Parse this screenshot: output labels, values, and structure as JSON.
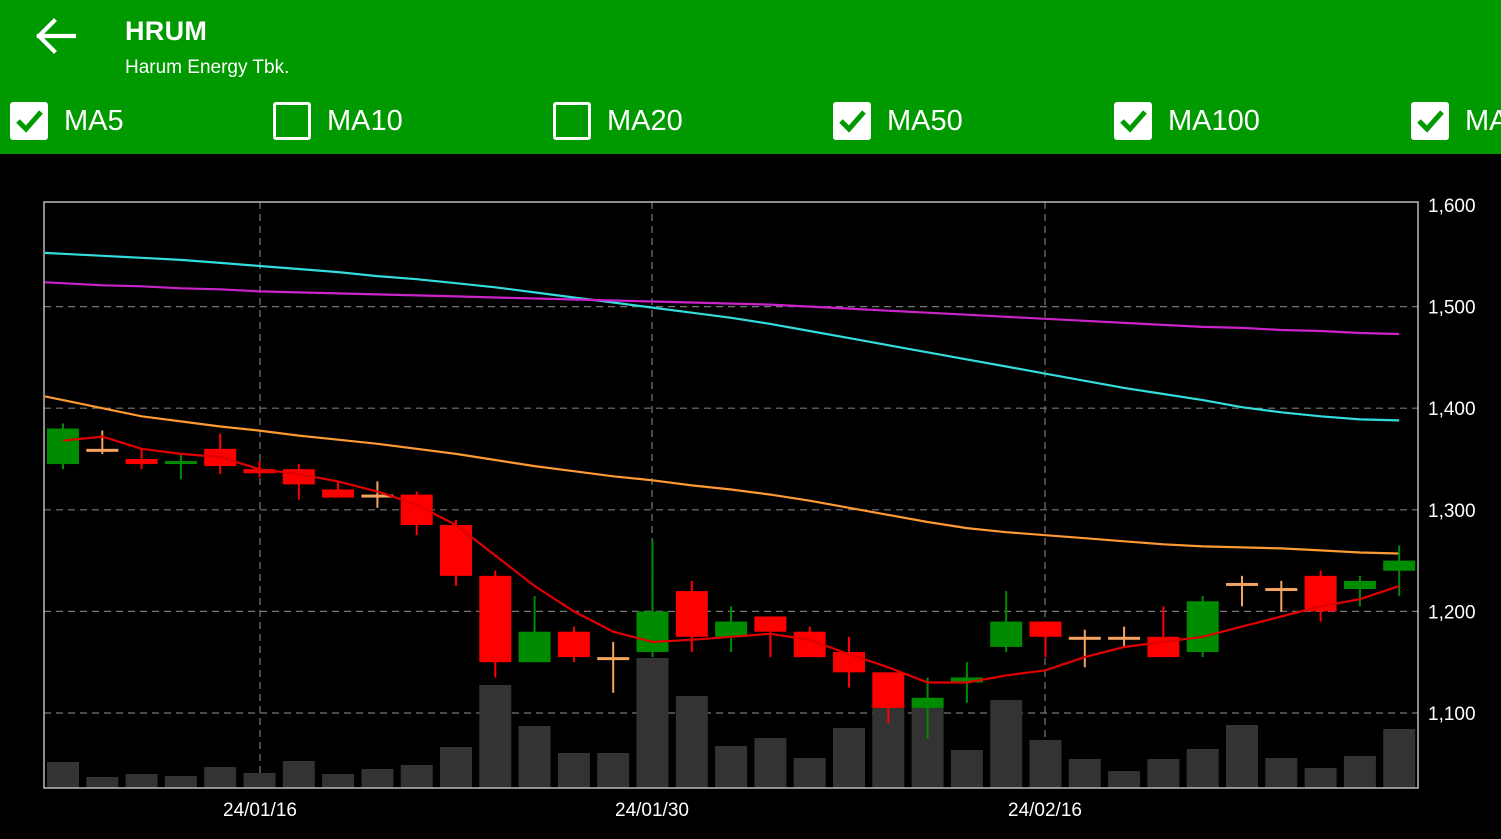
{
  "header": {
    "back_icon": "arrow-left-icon",
    "ticker": "HRUM",
    "company": "Harum Energy Tbk."
  },
  "ma_toggles": [
    {
      "label": "MA5",
      "checked": true
    },
    {
      "label": "MA10",
      "checked": false
    },
    {
      "label": "MA20",
      "checked": false
    },
    {
      "label": "MA50",
      "checked": true
    },
    {
      "label": "MA100",
      "checked": true
    },
    {
      "label": "MA",
      "checked": true
    }
  ],
  "colors": {
    "appbar": "#009900",
    "up": "#008c00",
    "down": "#ff0000",
    "flat": "#f4a460",
    "ma5": "#e00000",
    "ma50": "#ff9933",
    "ma100": "#33dddd",
    "ma200": "#cc22cc",
    "volume": "#333333",
    "grid": "#777777"
  },
  "chart_data": {
    "type": "candlestick",
    "y_ticks": [
      "1,600",
      "1,500",
      "1,400",
      "1,300",
      "1,200",
      "1,100"
    ],
    "y_range": [
      1100,
      1600
    ],
    "x_labels": [
      "24/01/16",
      "24/01/30",
      "24/02/16"
    ],
    "candles": [
      {
        "o": 1345,
        "h": 1385,
        "l": 1340,
        "c": 1380
      },
      {
        "o": 1360,
        "h": 1378,
        "l": 1355,
        "c": 1360
      },
      {
        "o": 1350,
        "h": 1360,
        "l": 1340,
        "c": 1345
      },
      {
        "o": 1345,
        "h": 1355,
        "l": 1330,
        "c": 1348
      },
      {
        "o": 1360,
        "h": 1375,
        "l": 1335,
        "c": 1343
      },
      {
        "o": 1340,
        "h": 1348,
        "l": 1332,
        "c": 1336
      },
      {
        "o": 1340,
        "h": 1345,
        "l": 1310,
        "c": 1325
      },
      {
        "o": 1320,
        "h": 1328,
        "l": 1312,
        "c": 1312
      },
      {
        "o": 1315,
        "h": 1328,
        "l": 1302,
        "c": 1315
      },
      {
        "o": 1315,
        "h": 1318,
        "l": 1275,
        "c": 1285
      },
      {
        "o": 1285,
        "h": 1290,
        "l": 1225,
        "c": 1235
      },
      {
        "o": 1235,
        "h": 1240,
        "l": 1135,
        "c": 1150
      },
      {
        "o": 1150,
        "h": 1215,
        "l": 1150,
        "c": 1180
      },
      {
        "o": 1180,
        "h": 1185,
        "l": 1150,
        "c": 1155
      },
      {
        "o": 1155,
        "h": 1170,
        "l": 1120,
        "c": 1155
      },
      {
        "o": 1160,
        "h": 1270,
        "l": 1155,
        "c": 1200
      },
      {
        "o": 1220,
        "h": 1230,
        "l": 1160,
        "c": 1175
      },
      {
        "o": 1175,
        "h": 1205,
        "l": 1160,
        "c": 1190
      },
      {
        "o": 1195,
        "h": 1195,
        "l": 1155,
        "c": 1180
      },
      {
        "o": 1180,
        "h": 1185,
        "l": 1155,
        "c": 1155
      },
      {
        "o": 1160,
        "h": 1175,
        "l": 1125,
        "c": 1140
      },
      {
        "o": 1140,
        "h": 1140,
        "l": 1090,
        "c": 1105
      },
      {
        "o": 1105,
        "h": 1135,
        "l": 1075,
        "c": 1115
      },
      {
        "o": 1130,
        "h": 1150,
        "l": 1110,
        "c": 1135
      },
      {
        "o": 1165,
        "h": 1220,
        "l": 1160,
        "c": 1190
      },
      {
        "o": 1190,
        "h": 1190,
        "l": 1155,
        "c": 1175
      },
      {
        "o": 1175,
        "h": 1182,
        "l": 1145,
        "c": 1175
      },
      {
        "o": 1175,
        "h": 1185,
        "l": 1165,
        "c": 1175
      },
      {
        "o": 1175,
        "h": 1205,
        "l": 1155,
        "c": 1155
      },
      {
        "o": 1160,
        "h": 1215,
        "l": 1155,
        "c": 1210
      },
      {
        "o": 1228,
        "h": 1235,
        "l": 1205,
        "c": 1228
      },
      {
        "o": 1223,
        "h": 1230,
        "l": 1200,
        "c": 1223
      },
      {
        "o": 1235,
        "h": 1240,
        "l": 1190,
        "c": 1200
      },
      {
        "o": 1222,
        "h": 1235,
        "l": 1205,
        "c": 1230
      },
      {
        "o": 1240,
        "h": 1265,
        "l": 1215,
        "c": 1250
      }
    ],
    "volume": [
      26,
      11,
      14,
      12,
      21,
      15,
      27,
      14,
      19,
      23,
      41,
      103,
      62,
      35,
      35,
      130,
      92,
      42,
      50,
      30,
      60,
      80,
      80,
      38,
      88,
      48,
      29,
      17,
      29,
      39,
      63,
      30,
      20,
      32,
      59
    ],
    "ma5": [
      1368,
      1372,
      1360,
      1355,
      1352,
      1340,
      1335,
      1328,
      1318,
      1305,
      1285,
      1255,
      1225,
      1200,
      1180,
      1170,
      1172,
      1175,
      1178,
      1172,
      1158,
      1145,
      1130,
      1130,
      1137,
      1142,
      1155,
      1165,
      1170,
      1175,
      1185,
      1195,
      1205,
      1212,
      1225
    ],
    "ma50": [
      1408,
      1400,
      1392,
      1387,
      1382,
      1378,
      1373,
      1369,
      1365,
      1360,
      1355,
      1349,
      1343,
      1338,
      1333,
      1329,
      1324,
      1320,
      1315,
      1309,
      1302,
      1295,
      1288,
      1282,
      1278,
      1275,
      1272,
      1269,
      1266,
      1264,
      1263,
      1262,
      1260,
      1258,
      1257
    ],
    "ma100": [
      1552,
      1550,
      1548,
      1546,
      1543,
      1540,
      1537,
      1534,
      1530,
      1527,
      1523,
      1519,
      1514,
      1509,
      1504,
      1499,
      1494,
      1489,
      1483,
      1476,
      1469,
      1462,
      1455,
      1448,
      1441,
      1434,
      1427,
      1420,
      1414,
      1408,
      1401,
      1396,
      1392,
      1389,
      1388
    ],
    "ma200": [
      1523,
      1521,
      1520,
      1518,
      1517,
      1515,
      1514,
      1513,
      1512,
      1511,
      1510,
      1509,
      1508,
      1507,
      1506,
      1505,
      1504,
      1503,
      1502,
      1500,
      1498,
      1496,
      1494,
      1492,
      1490,
      1488,
      1486,
      1484,
      1482,
      1480,
      1479,
      1477,
      1476,
      1474,
      1473
    ]
  }
}
